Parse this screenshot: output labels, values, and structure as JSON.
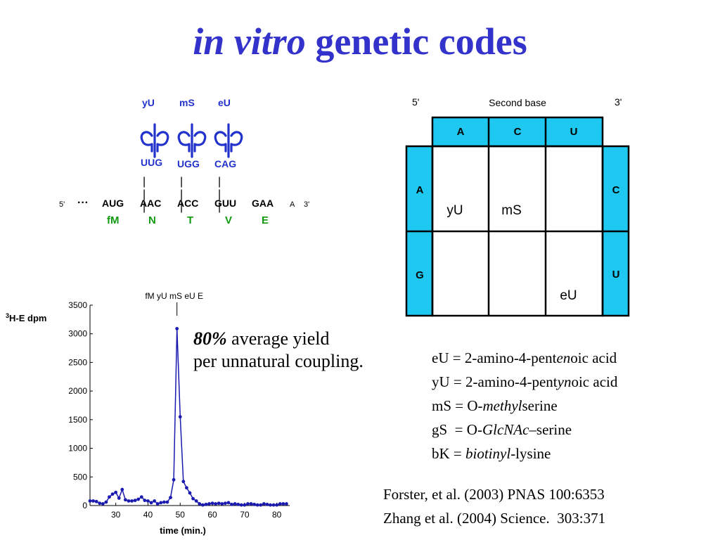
{
  "title": {
    "italic": "in vitro",
    "rest": " genetic codes"
  },
  "trna": {
    "labels": [
      "yU",
      "mS",
      "eU"
    ],
    "anticodons": [
      "UUG",
      "UGG",
      "CAG"
    ],
    "bars": "| | |",
    "five_prime": "5'",
    "ellipsis": "···",
    "codons": [
      "AUG",
      "AAC",
      "ACC",
      "GUU",
      "GAA"
    ],
    "tail_a": "A",
    "three_prime": "3'",
    "amino_acids": [
      "fM",
      "N",
      "T",
      "V",
      "E"
    ]
  },
  "table": {
    "five_prime": "5'",
    "header": "Second base",
    "three_prime": "3'",
    "columns": [
      "A",
      "C",
      "U"
    ],
    "rows_left": [
      "A",
      "G"
    ],
    "rows_right": [
      "C",
      "U"
    ],
    "cells": [
      {
        "text": "yU",
        "row": 0,
        "col": 0
      },
      {
        "text": "mS",
        "row": 0,
        "col": 1
      },
      {
        "text": "eU",
        "row": 1,
        "col": 2
      }
    ],
    "fill_color": "#1ec8f0"
  },
  "yield": {
    "bold": "80%",
    "line1": " average yield",
    "line2": "per unnatural coupling."
  },
  "definitions": [
    {
      "pre": "eU = 2-amino-4-pent",
      "it": "en",
      "post": "oic acid"
    },
    {
      "pre": "yU = 2-amino-4-pent",
      "it": "yn",
      "post": "oic acid"
    },
    {
      "pre": "mS = O-",
      "it": "methyl",
      "post": "serine"
    },
    {
      "pre": "gS  = O-",
      "it": "GlcNAc",
      "post": "–serine"
    },
    {
      "pre": "bK = ",
      "it": "biotinyl",
      "post": "-lysine"
    }
  ],
  "references": [
    "Forster, et al. (2003) PNAS 100:6353",
    "Zhang et al. (2004) Science.  303:371"
  ],
  "chart_data": {
    "type": "line",
    "ylabel_sup": "3",
    "ylabel": "H-E dpm",
    "xlabel": "time (min.)",
    "annotation": "fM yU mS eU E",
    "annotation_x": 49,
    "xlim": [
      22,
      84
    ],
    "ylim": [
      0,
      3500
    ],
    "xticks": [
      30,
      40,
      50,
      60,
      70,
      80
    ],
    "yticks": [
      0,
      500,
      1000,
      1500,
      2000,
      2500,
      3000,
      3500
    ],
    "color": "#1a1ab0",
    "x": [
      22,
      23,
      24,
      25,
      26,
      27,
      28,
      29,
      30,
      31,
      32,
      33,
      34,
      35,
      36,
      37,
      38,
      39,
      40,
      41,
      42,
      43,
      44,
      45,
      46,
      47,
      48,
      49,
      50,
      51,
      52,
      53,
      54,
      55,
      56,
      57,
      58,
      59,
      60,
      61,
      62,
      63,
      64,
      65,
      66,
      67,
      68,
      69,
      70,
      71,
      72,
      73,
      74,
      75,
      76,
      77,
      78,
      79,
      80,
      81,
      82,
      83
    ],
    "y": [
      80,
      80,
      70,
      40,
      30,
      60,
      150,
      200,
      230,
      130,
      280,
      100,
      80,
      80,
      90,
      110,
      150,
      90,
      80,
      50,
      80,
      30,
      50,
      60,
      60,
      140,
      450,
      3090,
      1550,
      420,
      310,
      220,
      120,
      80,
      30,
      10,
      20,
      30,
      40,
      30,
      40,
      30,
      40,
      50,
      20,
      30,
      20,
      10,
      10,
      30,
      30,
      20,
      10,
      10,
      30,
      20,
      10,
      10,
      10,
      30,
      30,
      30
    ]
  }
}
